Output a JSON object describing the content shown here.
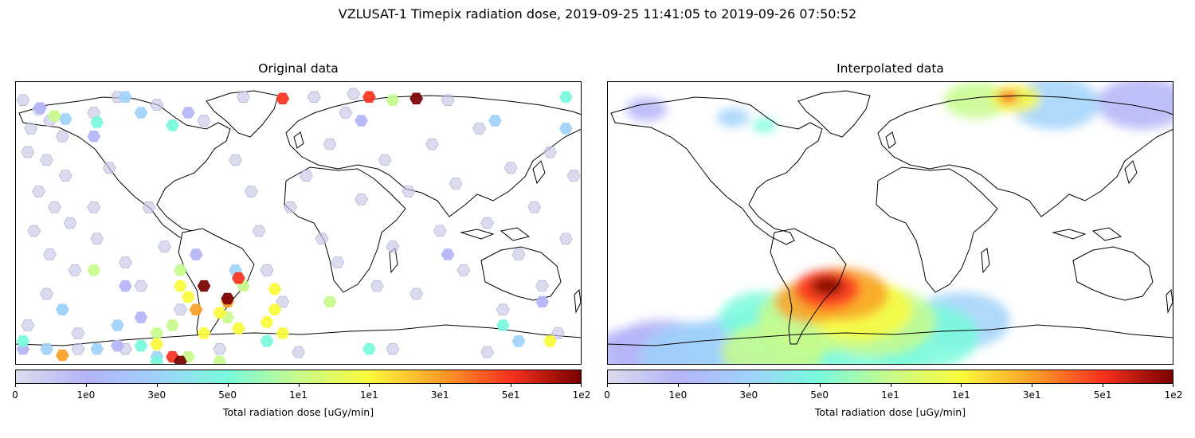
{
  "figure": {
    "title": "VZLUSAT-1 Timepix radiation dose, 2019-09-25 11:41:05 to 2019-09-26 07:50:52"
  },
  "panels": [
    {
      "title": "Original data"
    },
    {
      "title": "Interpolated data"
    }
  ],
  "colorbar": {
    "label": "Total radiation dose [uGy/min]",
    "ticks": [
      "0",
      "1e0",
      "3e0",
      "5e0",
      "1e1",
      "1e1",
      "3e1",
      "5e1",
      "1e2"
    ],
    "colors": [
      "#dcdcee",
      "#b4b4f8",
      "#a0d2fa",
      "#78fadc",
      "#c8fa8c",
      "#fafa3c",
      "#faa028",
      "#fa321e",
      "#780000"
    ]
  },
  "map_style": {
    "land_outline": "#000000",
    "hex_low": "#c8c8e6"
  },
  "chart_data": {
    "type": "map-scatter",
    "units": "uGy/min",
    "xlim": [
      -180,
      180
    ],
    "ylim": [
      -90,
      90
    ],
    "hex_points": [
      {
        "lon": -175,
        "lat": 78,
        "v": 0
      },
      {
        "lon": -165,
        "lat": 72,
        "v": 0
      },
      {
        "lon": -158,
        "lat": 65,
        "v": 0
      },
      {
        "lon": -170,
        "lat": 60,
        "v": 0
      },
      {
        "lon": -150,
        "lat": 55,
        "v": 0
      },
      {
        "lon": -172,
        "lat": 45,
        "v": 0
      },
      {
        "lon": -160,
        "lat": 40,
        "v": 0
      },
      {
        "lon": -148,
        "lat": 30,
        "v": 0
      },
      {
        "lon": -165,
        "lat": 20,
        "v": 0
      },
      {
        "lon": -155,
        "lat": 10,
        "v": 0
      },
      {
        "lon": -145,
        "lat": 0,
        "v": 0
      },
      {
        "lon": -168,
        "lat": -5,
        "v": 0
      },
      {
        "lon": -158,
        "lat": -20,
        "v": 0
      },
      {
        "lon": -142,
        "lat": -30,
        "v": 0
      },
      {
        "lon": -160,
        "lat": -45,
        "v": 0
      },
      {
        "lon": -150,
        "lat": -55,
        "v": 0
      },
      {
        "lon": -172,
        "lat": -65,
        "v": 0
      },
      {
        "lon": -140,
        "lat": -70,
        "v": 0
      },
      {
        "lon": -130,
        "lat": 10,
        "v": 0
      },
      {
        "lon": -128,
        "lat": -10,
        "v": 0
      },
      {
        "lon": -120,
        "lat": 35,
        "v": 0
      },
      {
        "lon": -110,
        "lat": -25,
        "v": 0
      },
      {
        "lon": -100,
        "lat": -40,
        "v": 0
      },
      {
        "lon": -95,
        "lat": 10,
        "v": 0
      },
      {
        "lon": -85,
        "lat": -15,
        "v": 0
      },
      {
        "lon": -75,
        "lat": -55,
        "v": 0
      },
      {
        "lon": -130,
        "lat": 70,
        "v": 0
      },
      {
        "lon": -115,
        "lat": 80,
        "v": 0
      },
      {
        "lon": -90,
        "lat": 75,
        "v": 0
      },
      {
        "lon": -60,
        "lat": 65,
        "v": 0
      },
      {
        "lon": -40,
        "lat": 40,
        "v": 0
      },
      {
        "lon": -30,
        "lat": 20,
        "v": 0
      },
      {
        "lon": -25,
        "lat": -5,
        "v": 0
      },
      {
        "lon": -20,
        "lat": -30,
        "v": 0
      },
      {
        "lon": -10,
        "lat": -50,
        "v": 0
      },
      {
        "lon": -5,
        "lat": 10,
        "v": 0
      },
      {
        "lon": 5,
        "lat": 30,
        "v": 0
      },
      {
        "lon": 15,
        "lat": -10,
        "v": 0
      },
      {
        "lon": 20,
        "lat": 50,
        "v": 0
      },
      {
        "lon": 25,
        "lat": -25,
        "v": 0
      },
      {
        "lon": 30,
        "lat": 70,
        "v": 0
      },
      {
        "lon": 40,
        "lat": 15,
        "v": 0
      },
      {
        "lon": 50,
        "lat": -40,
        "v": 0
      },
      {
        "lon": 55,
        "lat": 40,
        "v": 0
      },
      {
        "lon": 60,
        "lat": -15,
        "v": 0
      },
      {
        "lon": 70,
        "lat": 20,
        "v": 0
      },
      {
        "lon": 75,
        "lat": -45,
        "v": 0
      },
      {
        "lon": 85,
        "lat": 50,
        "v": 0
      },
      {
        "lon": 90,
        "lat": -5,
        "v": 0
      },
      {
        "lon": 100,
        "lat": 25,
        "v": 0
      },
      {
        "lon": 105,
        "lat": -30,
        "v": 0
      },
      {
        "lon": 115,
        "lat": 60,
        "v": 0
      },
      {
        "lon": 120,
        "lat": 0,
        "v": 0
      },
      {
        "lon": 130,
        "lat": -55,
        "v": 0
      },
      {
        "lon": 135,
        "lat": 35,
        "v": 0
      },
      {
        "lon": 140,
        "lat": -20,
        "v": 0
      },
      {
        "lon": 150,
        "lat": 10,
        "v": 0
      },
      {
        "lon": 155,
        "lat": -40,
        "v": 0
      },
      {
        "lon": 160,
        "lat": 45,
        "v": 0
      },
      {
        "lon": 165,
        "lat": -70,
        "v": 0
      },
      {
        "lon": 170,
        "lat": -10,
        "v": 0
      },
      {
        "lon": 175,
        "lat": 30,
        "v": 0
      },
      {
        "lon": -50,
        "lat": -80,
        "v": 0
      },
      {
        "lon": 0,
        "lat": -82,
        "v": 0
      },
      {
        "lon": 60,
        "lat": -80,
        "v": 0
      },
      {
        "lon": 120,
        "lat": -82,
        "v": 0
      },
      {
        "lon": -110,
        "lat": -80,
        "v": 0
      },
      {
        "lon": -35,
        "lat": 80,
        "v": 0
      },
      {
        "lon": 35,
        "lat": 82,
        "v": 0
      },
      {
        "lon": 95,
        "lat": 78,
        "v": 0
      },
      {
        "lon": 10,
        "lat": 80,
        "v": 0
      },
      {
        "lon": -140,
        "lat": -80,
        "v": 0
      },
      {
        "lon": -164,
        "lat": 73,
        "v": 1
      },
      {
        "lon": -130,
        "lat": 55,
        "v": 1
      },
      {
        "lon": -70,
        "lat": 70,
        "v": 1
      },
      {
        "lon": -110,
        "lat": -40,
        "v": 1
      },
      {
        "lon": -100,
        "lat": -60,
        "v": 1
      },
      {
        "lon": -115,
        "lat": -78,
        "v": 1
      },
      {
        "lon": -65,
        "lat": -20,
        "v": 1
      },
      {
        "lon": 40,
        "lat": 65,
        "v": 1
      },
      {
        "lon": 95,
        "lat": -20,
        "v": 1
      },
      {
        "lon": 155,
        "lat": -50,
        "v": 1
      },
      {
        "lon": -175,
        "lat": -80,
        "v": 1
      },
      {
        "lon": -148,
        "lat": 66,
        "v": 2
      },
      {
        "lon": -110,
        "lat": 80,
        "v": 2
      },
      {
        "lon": -100,
        "lat": 70,
        "v": 2
      },
      {
        "lon": -150,
        "lat": -55,
        "v": 2
      },
      {
        "lon": -128,
        "lat": -80,
        "v": 2
      },
      {
        "lon": -160,
        "lat": -80,
        "v": 2
      },
      {
        "lon": -40,
        "lat": -30,
        "v": 2
      },
      {
        "lon": -90,
        "lat": -85,
        "v": 2
      },
      {
        "lon": -115,
        "lat": -65,
        "v": 2
      },
      {
        "lon": 125,
        "lat": 65,
        "v": 2
      },
      {
        "lon": 170,
        "lat": 60,
        "v": 2
      },
      {
        "lon": 140,
        "lat": -75,
        "v": 2
      },
      {
        "lon": -128,
        "lat": 64,
        "v": 3
      },
      {
        "lon": -80,
        "lat": 62,
        "v": 3
      },
      {
        "lon": 170,
        "lat": 80,
        "v": 3
      },
      {
        "lon": -175,
        "lat": -75,
        "v": 3
      },
      {
        "lon": -100,
        "lat": -78,
        "v": 3
      },
      {
        "lon": 45,
        "lat": -80,
        "v": 3
      },
      {
        "lon": -20,
        "lat": -75,
        "v": 3
      },
      {
        "lon": 130,
        "lat": -65,
        "v": 3
      },
      {
        "lon": -90,
        "lat": -88,
        "v": 3
      },
      {
        "lon": -90,
        "lat": -70,
        "v": 4
      },
      {
        "lon": -45,
        "lat": -60,
        "v": 4
      },
      {
        "lon": -50,
        "lat": -88,
        "v": 4
      },
      {
        "lon": -70,
        "lat": -85,
        "v": 4
      },
      {
        "lon": 20,
        "lat": -50,
        "v": 4
      },
      {
        "lon": -75,
        "lat": -30,
        "v": 4
      },
      {
        "lon": -35,
        "lat": -40,
        "v": 4
      },
      {
        "lon": -80,
        "lat": -65,
        "v": 4
      },
      {
        "lon": -155,
        "lat": 68,
        "v": 4
      },
      {
        "lon": 60,
        "lat": 78,
        "v": 4
      },
      {
        "lon": -130,
        "lat": -30,
        "v": 4
      },
      {
        "lon": -70,
        "lat": -47,
        "v": 5
      },
      {
        "lon": -50,
        "lat": -57,
        "v": 5
      },
      {
        "lon": -75,
        "lat": -40,
        "v": 5
      },
      {
        "lon": -20,
        "lat": -63,
        "v": 5
      },
      {
        "lon": -38,
        "lat": -67,
        "v": 5
      },
      {
        "lon": -10,
        "lat": -70,
        "v": 5
      },
      {
        "lon": -90,
        "lat": -77,
        "v": 5
      },
      {
        "lon": -15,
        "lat": -55,
        "v": 5
      },
      {
        "lon": -15,
        "lat": -42,
        "v": 5
      },
      {
        "lon": -60,
        "lat": -70,
        "v": 5
      },
      {
        "lon": 160,
        "lat": -75,
        "v": 5
      },
      {
        "lon": -45,
        "lat": -50,
        "v": 6
      },
      {
        "lon": -65,
        "lat": -55,
        "v": 6
      },
      {
        "lon": -150,
        "lat": -84,
        "v": 6
      },
      {
        "lon": -38,
        "lat": -35,
        "v": 7
      },
      {
        "lon": 45,
        "lat": 80,
        "v": 7
      },
      {
        "lon": -80,
        "lat": -85,
        "v": 7
      },
      {
        "lon": -10,
        "lat": 79,
        "v": 7
      },
      {
        "lon": -60,
        "lat": -40,
        "v": 8
      },
      {
        "lon": -45,
        "lat": -48,
        "v": 8
      },
      {
        "lon": 75,
        "lat": 79,
        "v": 8
      },
      {
        "lon": -75,
        "lat": -88,
        "v": 8
      }
    ],
    "interpolated_field": [
      {
        "lon": -40,
        "lat": -42,
        "r": 16,
        "v": 7
      },
      {
        "lon": -30,
        "lat": -45,
        "r": 22,
        "v": 6
      },
      {
        "lon": -50,
        "lat": -50,
        "r": 18,
        "v": 6
      },
      {
        "lon": -20,
        "lat": -55,
        "r": 26,
        "v": 5
      },
      {
        "lon": -45,
        "lat": -60,
        "r": 30,
        "v": 4
      },
      {
        "lon": -10,
        "lat": -62,
        "r": 30,
        "v": 4
      },
      {
        "lon": -60,
        "lat": -70,
        "r": 30,
        "v": 3
      },
      {
        "lon": -20,
        "lat": -75,
        "r": 35,
        "v": 3
      },
      {
        "lon": -100,
        "lat": -78,
        "r": 25,
        "v": 2
      },
      {
        "lon": 20,
        "lat": -72,
        "r": 28,
        "v": 3
      },
      {
        "lon": -80,
        "lat": -60,
        "r": 22,
        "v": 3
      },
      {
        "lon": -75,
        "lat": -82,
        "r": 25,
        "v": 4
      },
      {
        "lon": -120,
        "lat": -85,
        "r": 30,
        "v": 2
      },
      {
        "lon": -160,
        "lat": -85,
        "r": 25,
        "v": 1
      },
      {
        "lon": 45,
        "lat": -62,
        "r": 24,
        "v": 2
      },
      {
        "lon": -145,
        "lat": -80,
        "r": 25,
        "v": 1
      },
      {
        "lon": -100,
        "lat": 67,
        "r": 8,
        "v": 2
      },
      {
        "lon": -80,
        "lat": 62,
        "r": 6,
        "v": 3
      },
      {
        "lon": -155,
        "lat": 72,
        "r": 10,
        "v": 1
      },
      {
        "lon": 55,
        "lat": 78,
        "r": 16,
        "v": 4
      },
      {
        "lon": 80,
        "lat": 79,
        "r": 12,
        "v": 5
      },
      {
        "lon": 75,
        "lat": 80,
        "r": 5,
        "v": 7
      },
      {
        "lon": 105,
        "lat": 76,
        "r": 22,
        "v": 2
      },
      {
        "lon": 160,
        "lat": 76,
        "r": 22,
        "v": 1
      },
      {
        "lon": -40,
        "lat": -40,
        "r": 8,
        "v": 8
      }
    ]
  }
}
